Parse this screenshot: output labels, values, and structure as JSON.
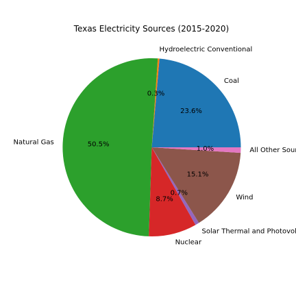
{
  "chart_data": {
    "type": "pie",
    "title": "Texas Electricity Sources (2015-2020)",
    "start_angle_deg": 0,
    "direction": "counterclockwise",
    "slices": [
      {
        "label": "Coal",
        "value": 23.6,
        "pct_text": "23.6%",
        "color": "#1f77b4"
      },
      {
        "label": "Hydroelectric Conventional",
        "value": 0.3,
        "pct_text": "0.3%",
        "color": "#ff7f0e"
      },
      {
        "label": "Natural Gas",
        "value": 50.5,
        "pct_text": "50.5%",
        "color": "#2ca02c"
      },
      {
        "label": "Nuclear",
        "value": 8.7,
        "pct_text": "8.7%",
        "color": "#d62728"
      },
      {
        "label": "Solar Thermal and Photovoltaic",
        "value": 0.7,
        "pct_text": "0.7%",
        "color": "#9467bd"
      },
      {
        "label": "Wind",
        "value": 15.1,
        "pct_text": "15.1%",
        "color": "#8c564b"
      },
      {
        "label": "All Other Sources",
        "value": 1.0,
        "pct_text": "1.0%",
        "color": "#e377c2"
      }
    ]
  }
}
